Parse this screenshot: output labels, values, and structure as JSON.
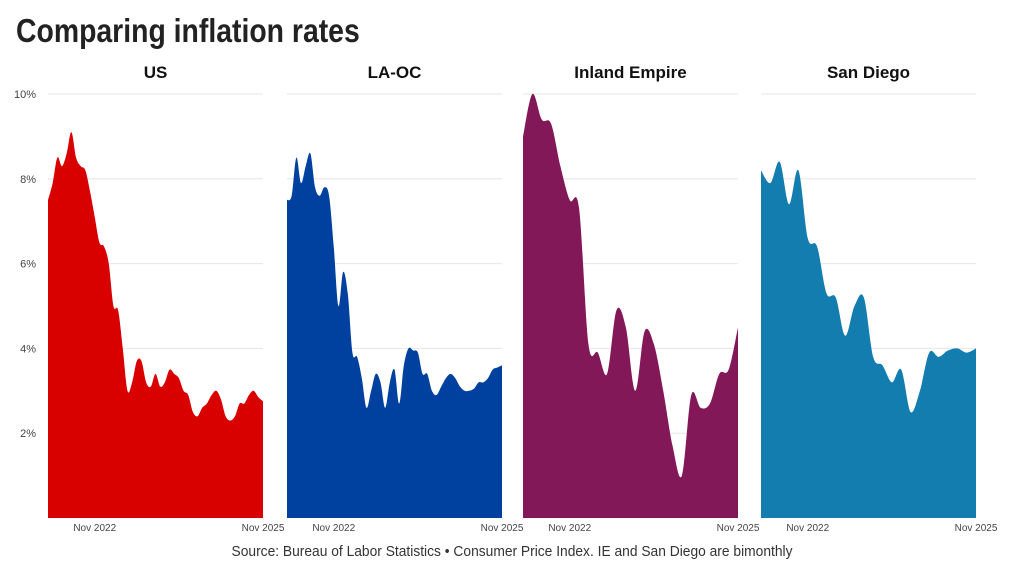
{
  "title": "Comparing inflation rates",
  "source": "Source: Bureau of Labor Statistics • Consumer Price Index. IE and San Diego are bimonthly",
  "chart_data": {
    "type": "area",
    "ylim": [
      0,
      10
    ],
    "yticks": [
      "2%",
      "4%",
      "6%",
      "8%",
      "10%"
    ],
    "ytick_values": [
      2,
      4,
      6,
      8,
      10
    ],
    "xticks": [
      "Nov 2022",
      "Nov 2025"
    ],
    "xtick_values": [
      "2022-11",
      "2025-11"
    ],
    "grid": true,
    "panels": [
      {
        "name": "US",
        "color": "#d90000",
        "x": [
          "2022-01",
          "2022-02",
          "2022-03",
          "2022-04",
          "2022-05",
          "2022-06",
          "2022-07",
          "2022-08",
          "2022-09",
          "2022-10",
          "2022-11",
          "2022-12",
          "2023-01",
          "2023-02",
          "2023-03",
          "2023-04",
          "2023-05",
          "2023-06",
          "2023-07",
          "2023-08",
          "2023-09",
          "2023-10",
          "2023-11",
          "2023-12",
          "2024-01",
          "2024-02",
          "2024-03",
          "2024-04",
          "2024-05",
          "2024-06",
          "2024-07",
          "2024-08",
          "2024-09",
          "2024-10",
          "2024-11",
          "2024-12",
          "2025-01",
          "2025-02",
          "2025-03",
          "2025-04",
          "2025-05",
          "2025-06",
          "2025-07",
          "2025-08",
          "2025-09",
          "2025-10",
          "2025-11"
        ],
        "values": [
          7.5,
          7.9,
          8.5,
          8.3,
          8.6,
          9.1,
          8.5,
          8.3,
          8.2,
          7.7,
          7.1,
          6.5,
          6.4,
          6.0,
          5.0,
          4.9,
          4.0,
          3.0,
          3.2,
          3.7,
          3.7,
          3.2,
          3.1,
          3.4,
          3.1,
          3.2,
          3.5,
          3.4,
          3.3,
          3.0,
          2.9,
          2.5,
          2.4,
          2.6,
          2.7,
          2.9,
          3.0,
          2.8,
          2.4,
          2.3,
          2.4,
          2.7,
          2.7,
          2.9,
          3.0,
          2.85,
          2.75
        ]
      },
      {
        "name": "LA-OC",
        "color": "#0041a0",
        "x": [
          "2022-01",
          "2022-02",
          "2022-03",
          "2022-04",
          "2022-05",
          "2022-06",
          "2022-07",
          "2022-08",
          "2022-09",
          "2022-10",
          "2022-11",
          "2022-12",
          "2023-01",
          "2023-02",
          "2023-03",
          "2023-04",
          "2023-05",
          "2023-06",
          "2023-07",
          "2023-08",
          "2023-09",
          "2023-10",
          "2023-11",
          "2023-12",
          "2024-01",
          "2024-02",
          "2024-03",
          "2024-04",
          "2024-05",
          "2024-06",
          "2024-07",
          "2024-08",
          "2024-09",
          "2024-10",
          "2024-11",
          "2024-12",
          "2025-01",
          "2025-02",
          "2025-03",
          "2025-04",
          "2025-05",
          "2025-06",
          "2025-07",
          "2025-08",
          "2025-09",
          "2025-10",
          "2025-11"
        ],
        "values": [
          7.5,
          7.6,
          8.5,
          7.9,
          8.3,
          8.6,
          7.8,
          7.6,
          7.8,
          7.6,
          6.4,
          5.0,
          5.8,
          5.3,
          3.9,
          3.8,
          3.3,
          2.6,
          3.0,
          3.4,
          3.2,
          2.6,
          3.2,
          3.5,
          2.7,
          3.6,
          4.0,
          3.95,
          3.9,
          3.4,
          3.4,
          3.0,
          2.9,
          3.1,
          3.3,
          3.4,
          3.3,
          3.1,
          3.0,
          3.0,
          3.05,
          3.2,
          3.2,
          3.3,
          3.5,
          3.55,
          3.6
        ]
      },
      {
        "name": "Inland Empire",
        "color": "#831858",
        "x": [
          "2022-01",
          "2022-03",
          "2022-05",
          "2022-07",
          "2022-09",
          "2022-11",
          "2023-01",
          "2023-03",
          "2023-05",
          "2023-07",
          "2023-09",
          "2023-11",
          "2024-01",
          "2024-03",
          "2024-05",
          "2024-07",
          "2024-09",
          "2024-11",
          "2025-01",
          "2025-03",
          "2025-05",
          "2025-07",
          "2025-09",
          "2025-11"
        ],
        "values": [
          9.0,
          10.0,
          9.4,
          9.3,
          8.3,
          7.5,
          7.3,
          4.1,
          3.9,
          3.4,
          4.9,
          4.5,
          3.0,
          4.4,
          4.1,
          3.0,
          1.7,
          1.0,
          2.9,
          2.6,
          2.7,
          3.4,
          3.5,
          4.5
        ]
      },
      {
        "name": "San Diego",
        "color": "#137daf",
        "x": [
          "2022-01",
          "2022-03",
          "2022-05",
          "2022-07",
          "2022-09",
          "2022-11",
          "2023-01",
          "2023-03",
          "2023-05",
          "2023-07",
          "2023-09",
          "2023-11",
          "2024-01",
          "2024-03",
          "2024-05",
          "2024-07",
          "2024-09",
          "2024-11",
          "2025-01",
          "2025-03",
          "2025-05",
          "2025-07",
          "2025-09",
          "2025-11"
        ],
        "values": [
          8.2,
          7.9,
          8.4,
          7.4,
          8.2,
          6.6,
          6.4,
          5.3,
          5.2,
          4.3,
          5.0,
          5.2,
          3.8,
          3.6,
          3.2,
          3.5,
          2.5,
          3.0,
          3.9,
          3.8,
          3.95,
          4.0,
          3.9,
          4.0
        ]
      }
    ]
  }
}
